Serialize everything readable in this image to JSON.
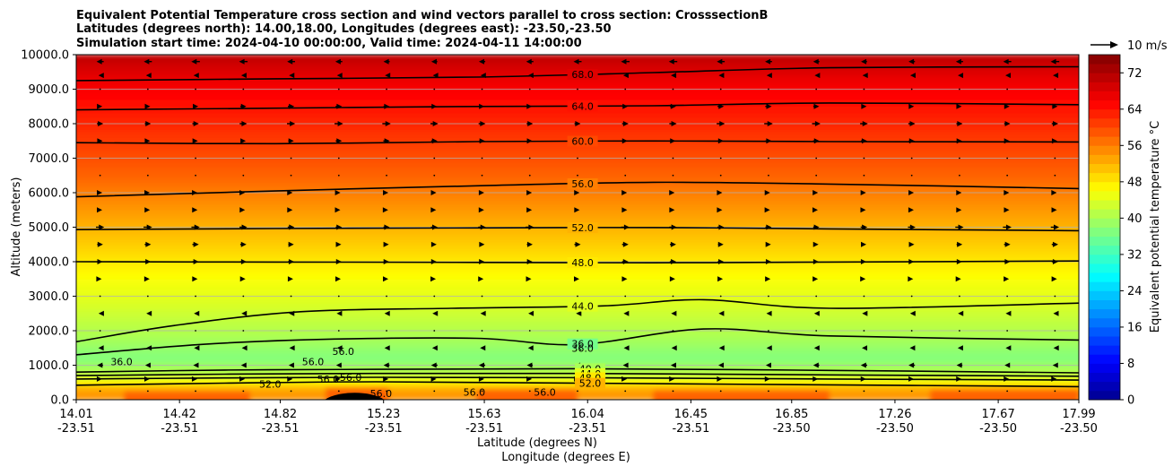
{
  "chart_data": {
    "type": "heatmap",
    "title_lines": [
      "Equivalent Potential Temperature cross section and wind vectors parallel to cross section: CrosssectionB",
      "Latitudes (degrees north): 14.00,18.00, Longitudes (degrees east): -23.50,-23.50",
      "Simulation start time: 2024-04-10 00:00:00, Valid time: 2024-04-11 14:00:00"
    ],
    "xlabel_lines": [
      "Latitude (degrees N)",
      "Longitude (degrees E)"
    ],
    "ylabel": "Altitude (meters)",
    "colorbar_label": "Equivalent potential temperature °C",
    "quiver_key_label": "10 m/s",
    "xlim": [
      14.01,
      17.99
    ],
    "ylim": [
      0,
      10000
    ],
    "x_ticks": [
      {
        "lat": 14.01,
        "lat_label": "14.01",
        "lon_label": "-23.51"
      },
      {
        "lat": 14.42,
        "lat_label": "14.42",
        "lon_label": "-23.51"
      },
      {
        "lat": 14.82,
        "lat_label": "14.82",
        "lon_label": "-23.51"
      },
      {
        "lat": 15.23,
        "lat_label": "15.23",
        "lon_label": "-23.51"
      },
      {
        "lat": 15.63,
        "lat_label": "15.63",
        "lon_label": "-23.51"
      },
      {
        "lat": 16.04,
        "lat_label": "16.04",
        "lon_label": "-23.51"
      },
      {
        "lat": 16.45,
        "lat_label": "16.45",
        "lon_label": "-23.51"
      },
      {
        "lat": 16.85,
        "lat_label": "16.85",
        "lon_label": "-23.50"
      },
      {
        "lat": 17.26,
        "lat_label": "17.26",
        "lon_label": "-23.50"
      },
      {
        "lat": 17.67,
        "lat_label": "17.67",
        "lon_label": "-23.50"
      },
      {
        "lat": 17.99,
        "lat_label": "17.99",
        "lon_label": "-23.50"
      }
    ],
    "y_ticks": [
      0,
      1000,
      2000,
      3000,
      4000,
      5000,
      6000,
      7000,
      8000,
      9000,
      10000
    ],
    "y_tick_labels": [
      "0.0",
      "1000.0",
      "2000.0",
      "3000.0",
      "4000.0",
      "5000.0",
      "6000.0",
      "7000.0",
      "8000.0",
      "9000.0",
      "10000.0"
    ],
    "colorbar": {
      "vmin": 0,
      "vmax": 76,
      "step": 2,
      "ticks": [
        0,
        8,
        16,
        24,
        32,
        40,
        48,
        56,
        64,
        72
      ],
      "tick_labels": [
        "0",
        "8",
        "16",
        "24",
        "32",
        "40",
        "48",
        "56",
        "64",
        "72"
      ]
    },
    "contours": [
      {
        "level": 68,
        "label": "68.0",
        "label_lat": 16.02,
        "points": [
          [
            14.01,
            9250
          ],
          [
            14.8,
            9300
          ],
          [
            15.6,
            9350
          ],
          [
            16.3,
            9480
          ],
          [
            17.0,
            9620
          ],
          [
            17.99,
            9650
          ]
        ]
      },
      {
        "level": 64,
        "label": "64.0",
        "label_lat": 16.02,
        "points": [
          [
            14.01,
            8400
          ],
          [
            14.8,
            8450
          ],
          [
            15.6,
            8500
          ],
          [
            16.3,
            8520
          ],
          [
            17.0,
            8600
          ],
          [
            17.99,
            8550
          ]
        ]
      },
      {
        "level": 60,
        "label": "60.0",
        "label_lat": 16.02,
        "points": [
          [
            14.01,
            7450
          ],
          [
            14.8,
            7420
          ],
          [
            15.6,
            7480
          ],
          [
            16.3,
            7500
          ],
          [
            17.0,
            7480
          ],
          [
            17.99,
            7470
          ]
        ]
      },
      {
        "level": 56,
        "label": "56.0",
        "label_lat": 16.02,
        "points": [
          [
            14.01,
            5880
          ],
          [
            14.8,
            6050
          ],
          [
            15.6,
            6200
          ],
          [
            16.3,
            6300
          ],
          [
            17.0,
            6250
          ],
          [
            17.99,
            6120
          ]
        ]
      },
      {
        "level": 52,
        "label": "52.0",
        "label_lat": 16.02,
        "points": [
          [
            14.01,
            4930
          ],
          [
            14.8,
            4960
          ],
          [
            15.6,
            4980
          ],
          [
            16.3,
            4990
          ],
          [
            17.0,
            4950
          ],
          [
            17.99,
            4900
          ]
        ]
      },
      {
        "level": 48,
        "label": "48.0",
        "label_lat": 16.02,
        "points": [
          [
            14.01,
            4000
          ],
          [
            14.8,
            3990
          ],
          [
            15.6,
            3980
          ],
          [
            16.3,
            3970
          ],
          [
            17.0,
            3990
          ],
          [
            17.99,
            4020
          ]
        ]
      },
      {
        "level": 44,
        "label": "44.0",
        "label_lat": 16.02,
        "points": [
          [
            14.01,
            1680
          ],
          [
            14.4,
            2150
          ],
          [
            14.9,
            2550
          ],
          [
            15.5,
            2650
          ],
          [
            16.1,
            2720
          ],
          [
            16.5,
            2900
          ],
          [
            17.0,
            2650
          ],
          [
            17.99,
            2800
          ]
        ]
      },
      {
        "level": 36,
        "label": "36.0",
        "label_lat": 16.02,
        "points": [
          [
            14.01,
            1300
          ],
          [
            14.5,
            1600
          ],
          [
            15.0,
            1750
          ],
          [
            15.6,
            1780
          ],
          [
            16.0,
            1600
          ],
          [
            16.5,
            2050
          ],
          [
            17.0,
            1850
          ],
          [
            17.99,
            1730
          ]
        ]
      },
      {
        "level": 40,
        "label": "40.0",
        "label_lat": 16.05,
        "points": [
          [
            14.01,
            800
          ],
          [
            14.6,
            860
          ],
          [
            15.2,
            880
          ],
          [
            16.0,
            900
          ],
          [
            17.0,
            850
          ],
          [
            17.99,
            780
          ]
        ]
      },
      {
        "level": 44,
        "label": "44.0",
        "label_lat": 16.05,
        "points": [
          [
            14.01,
            700
          ],
          [
            14.6,
            740
          ],
          [
            15.2,
            760
          ],
          [
            16.0,
            760
          ],
          [
            17.0,
            720
          ],
          [
            17.99,
            680
          ]
        ]
      },
      {
        "level": 48,
        "label": "48.0",
        "label_lat": 16.05,
        "points": [
          [
            14.01,
            600
          ],
          [
            14.6,
            630
          ],
          [
            15.2,
            650
          ],
          [
            16.0,
            640
          ],
          [
            17.0,
            600
          ],
          [
            17.99,
            570
          ]
        ]
      },
      {
        "level": 52,
        "label": "52.0",
        "label_lat": 16.05,
        "points": [
          [
            14.01,
            420
          ],
          [
            14.6,
            480
          ],
          [
            15.2,
            520
          ],
          [
            16.0,
            480
          ],
          [
            17.0,
            430
          ],
          [
            17.99,
            380
          ]
        ]
      }
    ],
    "extra_contour_labels": [
      {
        "text": "36.0",
        "lat": 16.02,
        "alt": 1500
      },
      {
        "text": "36.0",
        "lat": 14.19,
        "alt": 1100
      },
      {
        "text": "56.0",
        "lat": 14.95,
        "alt": 1100
      },
      {
        "text": "56.0",
        "lat": 15.07,
        "alt": 1400
      },
      {
        "text": "52.0",
        "lat": 14.78,
        "alt": 450
      },
      {
        "text": "56.0",
        "lat": 15.01,
        "alt": 600
      },
      {
        "text": "56.0",
        "lat": 15.1,
        "alt": 650
      },
      {
        "text": "56.0",
        "lat": 15.22,
        "alt": 180
      },
      {
        "text": "56.0",
        "lat": 15.59,
        "alt": 220
      },
      {
        "text": "56.0",
        "lat": 15.87,
        "alt": 220
      }
    ],
    "wind_field": {
      "units": "m/s",
      "reference_speed": 10,
      "by_altitude": [
        {
          "alt": 9800,
          "u": -4
        },
        {
          "alt": 9400,
          "u": -2
        },
        {
          "alt": 9000,
          "u": 1
        },
        {
          "alt": 8500,
          "u": 3
        },
        {
          "alt": 8000,
          "u": 4
        },
        {
          "alt": 7500,
          "u": 3
        },
        {
          "alt": 7000,
          "u": -1
        },
        {
          "alt": 6500,
          "u": 1
        },
        {
          "alt": 6000,
          "u": 2
        },
        {
          "alt": 5500,
          "u": 2
        },
        {
          "alt": 5000,
          "u": 4
        },
        {
          "alt": 4500,
          "u": 3
        },
        {
          "alt": 4000,
          "u": 3
        },
        {
          "alt": 3500,
          "u": 2
        },
        {
          "alt": 3000,
          "u": 1
        },
        {
          "alt": 2500,
          "u": -2
        },
        {
          "alt": 2000,
          "u": -1
        },
        {
          "alt": 1500,
          "u": -2
        },
        {
          "alt": 1000,
          "u": -3
        },
        {
          "alt": 600,
          "u": 2
        },
        {
          "alt": 250,
          "u": 1
        }
      ]
    }
  }
}
